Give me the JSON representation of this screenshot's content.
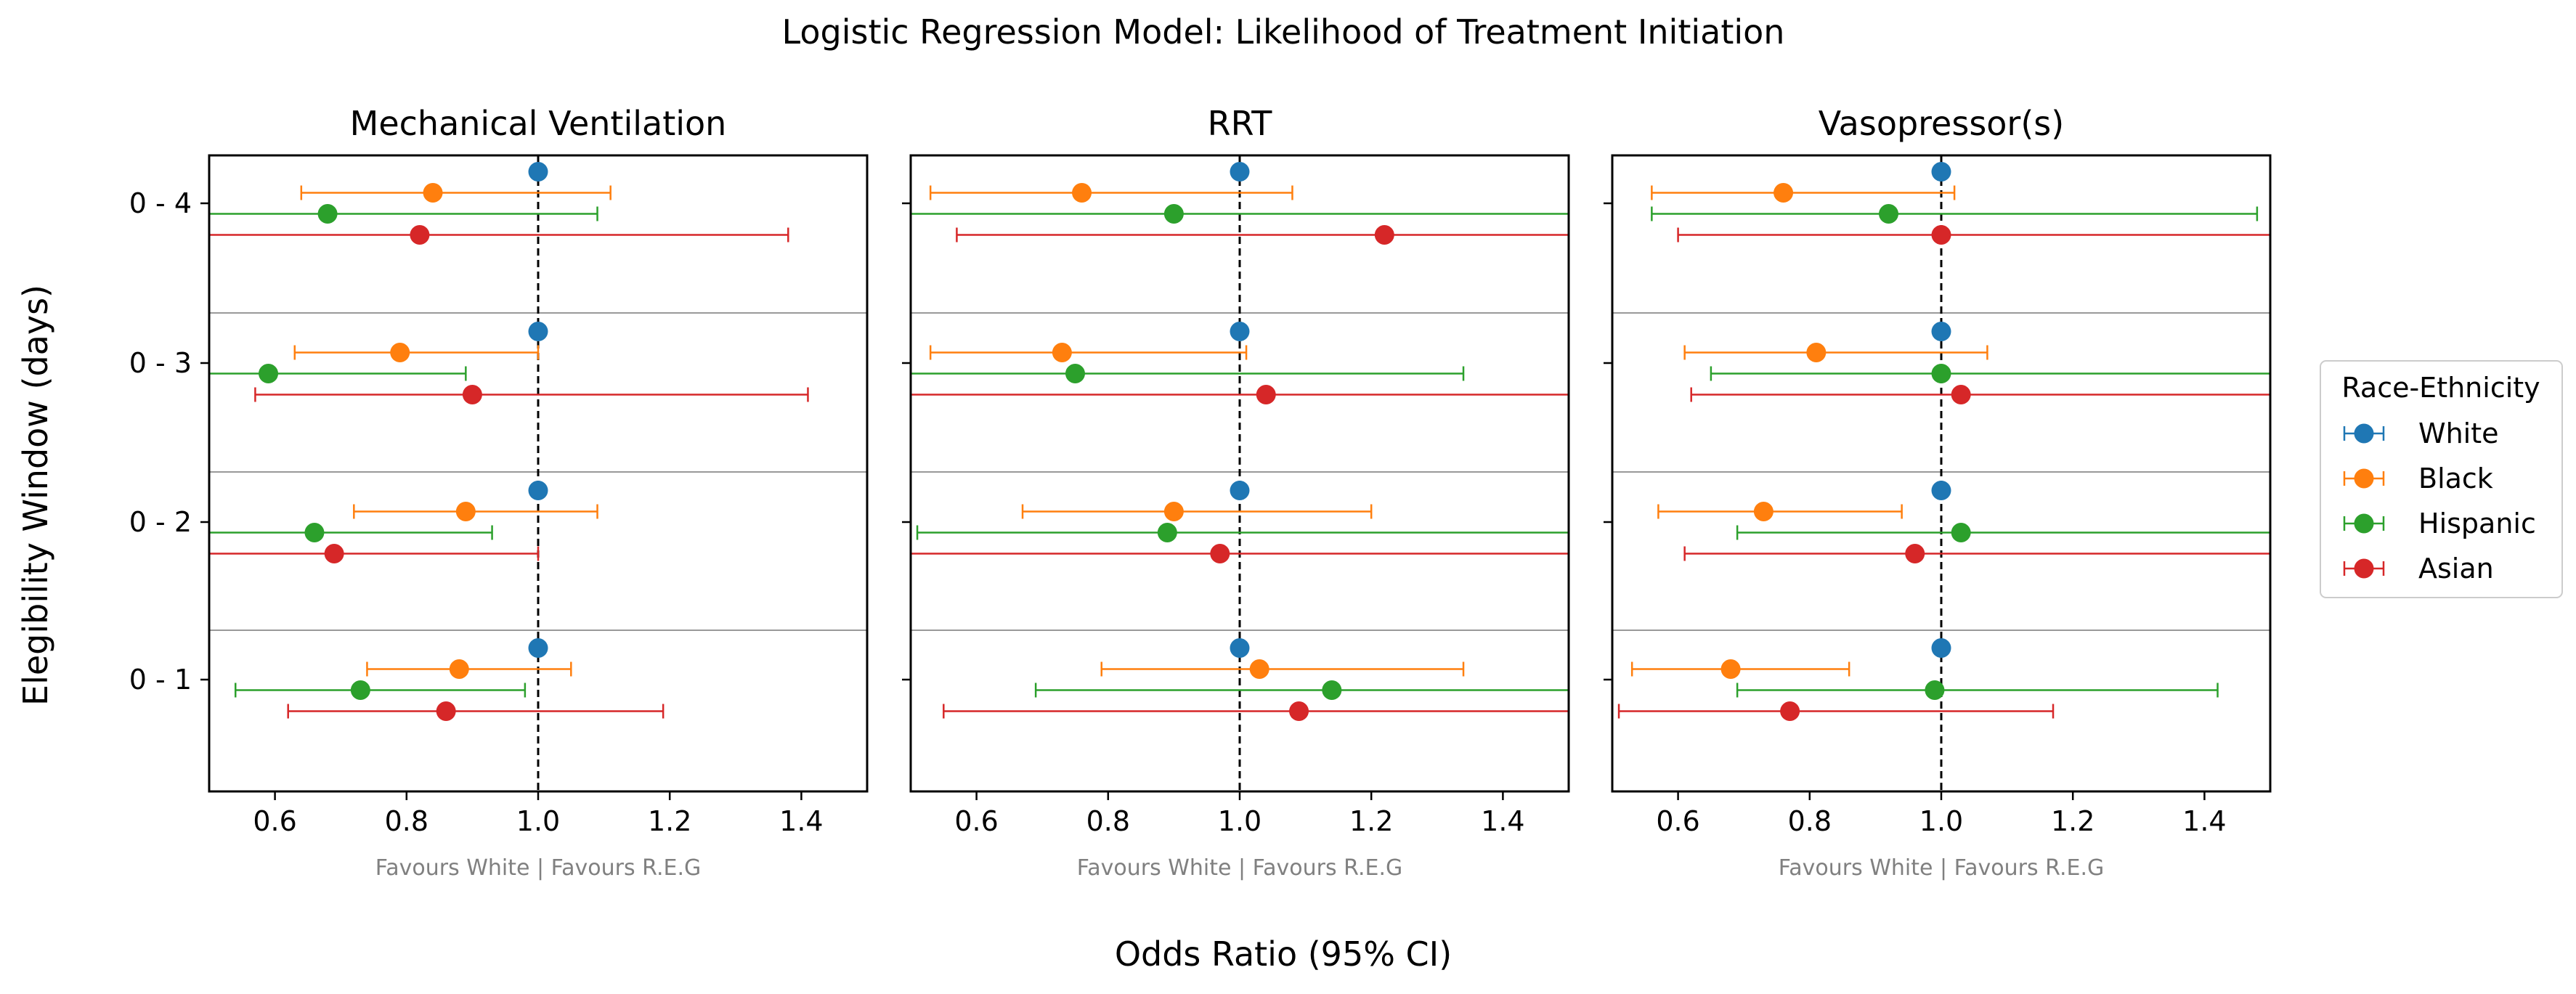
{
  "figure": {
    "title": "Logistic Regression Model: Likelihood of Treatment Initiation",
    "ylabel": "Elegibility Window (days)",
    "xlabel": "Odds Ratio (95% CI)"
  },
  "legend": {
    "title": "Race-Ethnicity",
    "placement": "center-right outside plots",
    "entries": [
      "White",
      "Black",
      "Hispanic",
      "Asian"
    ]
  },
  "colors": {
    "White": "#1f77b4",
    "Black": "#ff7f0e",
    "Hispanic": "#2ca02c",
    "Asian": "#d62728"
  },
  "chart_data": [
    {
      "type": "scatter",
      "subtype": "forest-plot",
      "title": "Mechanical Ventilation",
      "xlabel": "Favours White | Favours R.E.G",
      "xlim": [
        0.5,
        1.5
      ],
      "xticks": [
        "0.6",
        "0.8",
        "1.0",
        "1.2",
        "1.4"
      ],
      "categories": [
        "0 - 4",
        "0 - 3",
        "0 - 2",
        "0 - 1"
      ],
      "reference_line": 1.0,
      "series": [
        {
          "name": "White",
          "or": [
            1.0,
            1.0,
            1.0,
            1.0
          ],
          "ci_low": [
            1.0,
            1.0,
            1.0,
            1.0
          ],
          "ci_high": [
            1.0,
            1.0,
            1.0,
            1.0
          ]
        },
        {
          "name": "Black",
          "or": [
            0.84,
            0.79,
            0.89,
            0.88
          ],
          "ci_low": [
            0.64,
            0.63,
            0.72,
            0.74
          ],
          "ci_high": [
            1.11,
            1.0,
            1.09,
            1.05
          ]
        },
        {
          "name": "Hispanic",
          "or": [
            0.68,
            0.59,
            0.66,
            0.73
          ],
          "ci_low": [
            0.5,
            0.5,
            0.5,
            0.54
          ],
          "ci_high": [
            1.09,
            0.89,
            0.93,
            0.98
          ]
        },
        {
          "name": "Asian",
          "or": [
            0.82,
            0.9,
            0.69,
            0.86
          ],
          "ci_low": [
            0.5,
            0.57,
            0.5,
            0.62
          ],
          "ci_high": [
            1.38,
            1.41,
            1.0,
            1.19
          ]
        }
      ]
    },
    {
      "type": "scatter",
      "subtype": "forest-plot",
      "title": "RRT",
      "xlabel": "Favours White | Favours R.E.G",
      "xlim": [
        0.5,
        1.5
      ],
      "xticks": [
        "0.6",
        "0.8",
        "1.0",
        "1.2",
        "1.4"
      ],
      "categories": [
        "0 - 4",
        "0 - 3",
        "0 - 2",
        "0 - 1"
      ],
      "reference_line": 1.0,
      "series": [
        {
          "name": "White",
          "or": [
            1.0,
            1.0,
            1.0,
            1.0
          ],
          "ci_low": [
            1.0,
            1.0,
            1.0,
            1.0
          ],
          "ci_high": [
            1.0,
            1.0,
            1.0,
            1.0
          ]
        },
        {
          "name": "Black",
          "or": [
            0.76,
            0.73,
            0.9,
            1.03
          ],
          "ci_low": [
            0.53,
            0.53,
            0.67,
            0.79
          ],
          "ci_high": [
            1.08,
            1.01,
            1.2,
            1.34
          ]
        },
        {
          "name": "Hispanic",
          "or": [
            0.9,
            0.75,
            0.89,
            1.14
          ],
          "ci_low": [
            0.5,
            0.5,
            0.51,
            0.69
          ],
          "ci_high": [
            1.5,
            1.34,
            1.5,
            1.5
          ]
        },
        {
          "name": "Asian",
          "or": [
            1.22,
            1.04,
            0.97,
            1.09
          ],
          "ci_low": [
            0.57,
            0.5,
            0.5,
            0.55
          ],
          "ci_high": [
            1.5,
            1.5,
            1.5,
            1.5
          ]
        }
      ]
    },
    {
      "type": "scatter",
      "subtype": "forest-plot",
      "title": "Vasopressor(s)",
      "xlabel": "Favours White | Favours R.E.G",
      "xlim": [
        0.5,
        1.5
      ],
      "xticks": [
        "0.6",
        "0.8",
        "1.0",
        "1.2",
        "1.4"
      ],
      "categories": [
        "0 - 4",
        "0 - 3",
        "0 - 2",
        "0 - 1"
      ],
      "reference_line": 1.0,
      "series": [
        {
          "name": "White",
          "or": [
            1.0,
            1.0,
            1.0,
            1.0
          ],
          "ci_low": [
            1.0,
            1.0,
            1.0,
            1.0
          ],
          "ci_high": [
            1.0,
            1.0,
            1.0,
            1.0
          ]
        },
        {
          "name": "Black",
          "or": [
            0.76,
            0.81,
            0.73,
            0.68
          ],
          "ci_low": [
            0.56,
            0.61,
            0.57,
            0.53
          ],
          "ci_high": [
            1.02,
            1.07,
            0.94,
            0.86
          ]
        },
        {
          "name": "Hispanic",
          "or": [
            0.92,
            1.0,
            1.03,
            0.99
          ],
          "ci_low": [
            0.56,
            0.65,
            0.69,
            0.69
          ],
          "ci_high": [
            1.48,
            1.5,
            1.5,
            1.42
          ]
        },
        {
          "name": "Asian",
          "or": [
            1.0,
            1.03,
            0.96,
            0.77
          ],
          "ci_low": [
            0.6,
            0.62,
            0.61,
            0.51
          ],
          "ci_high": [
            1.5,
            1.5,
            1.5,
            1.17
          ]
        }
      ]
    }
  ]
}
